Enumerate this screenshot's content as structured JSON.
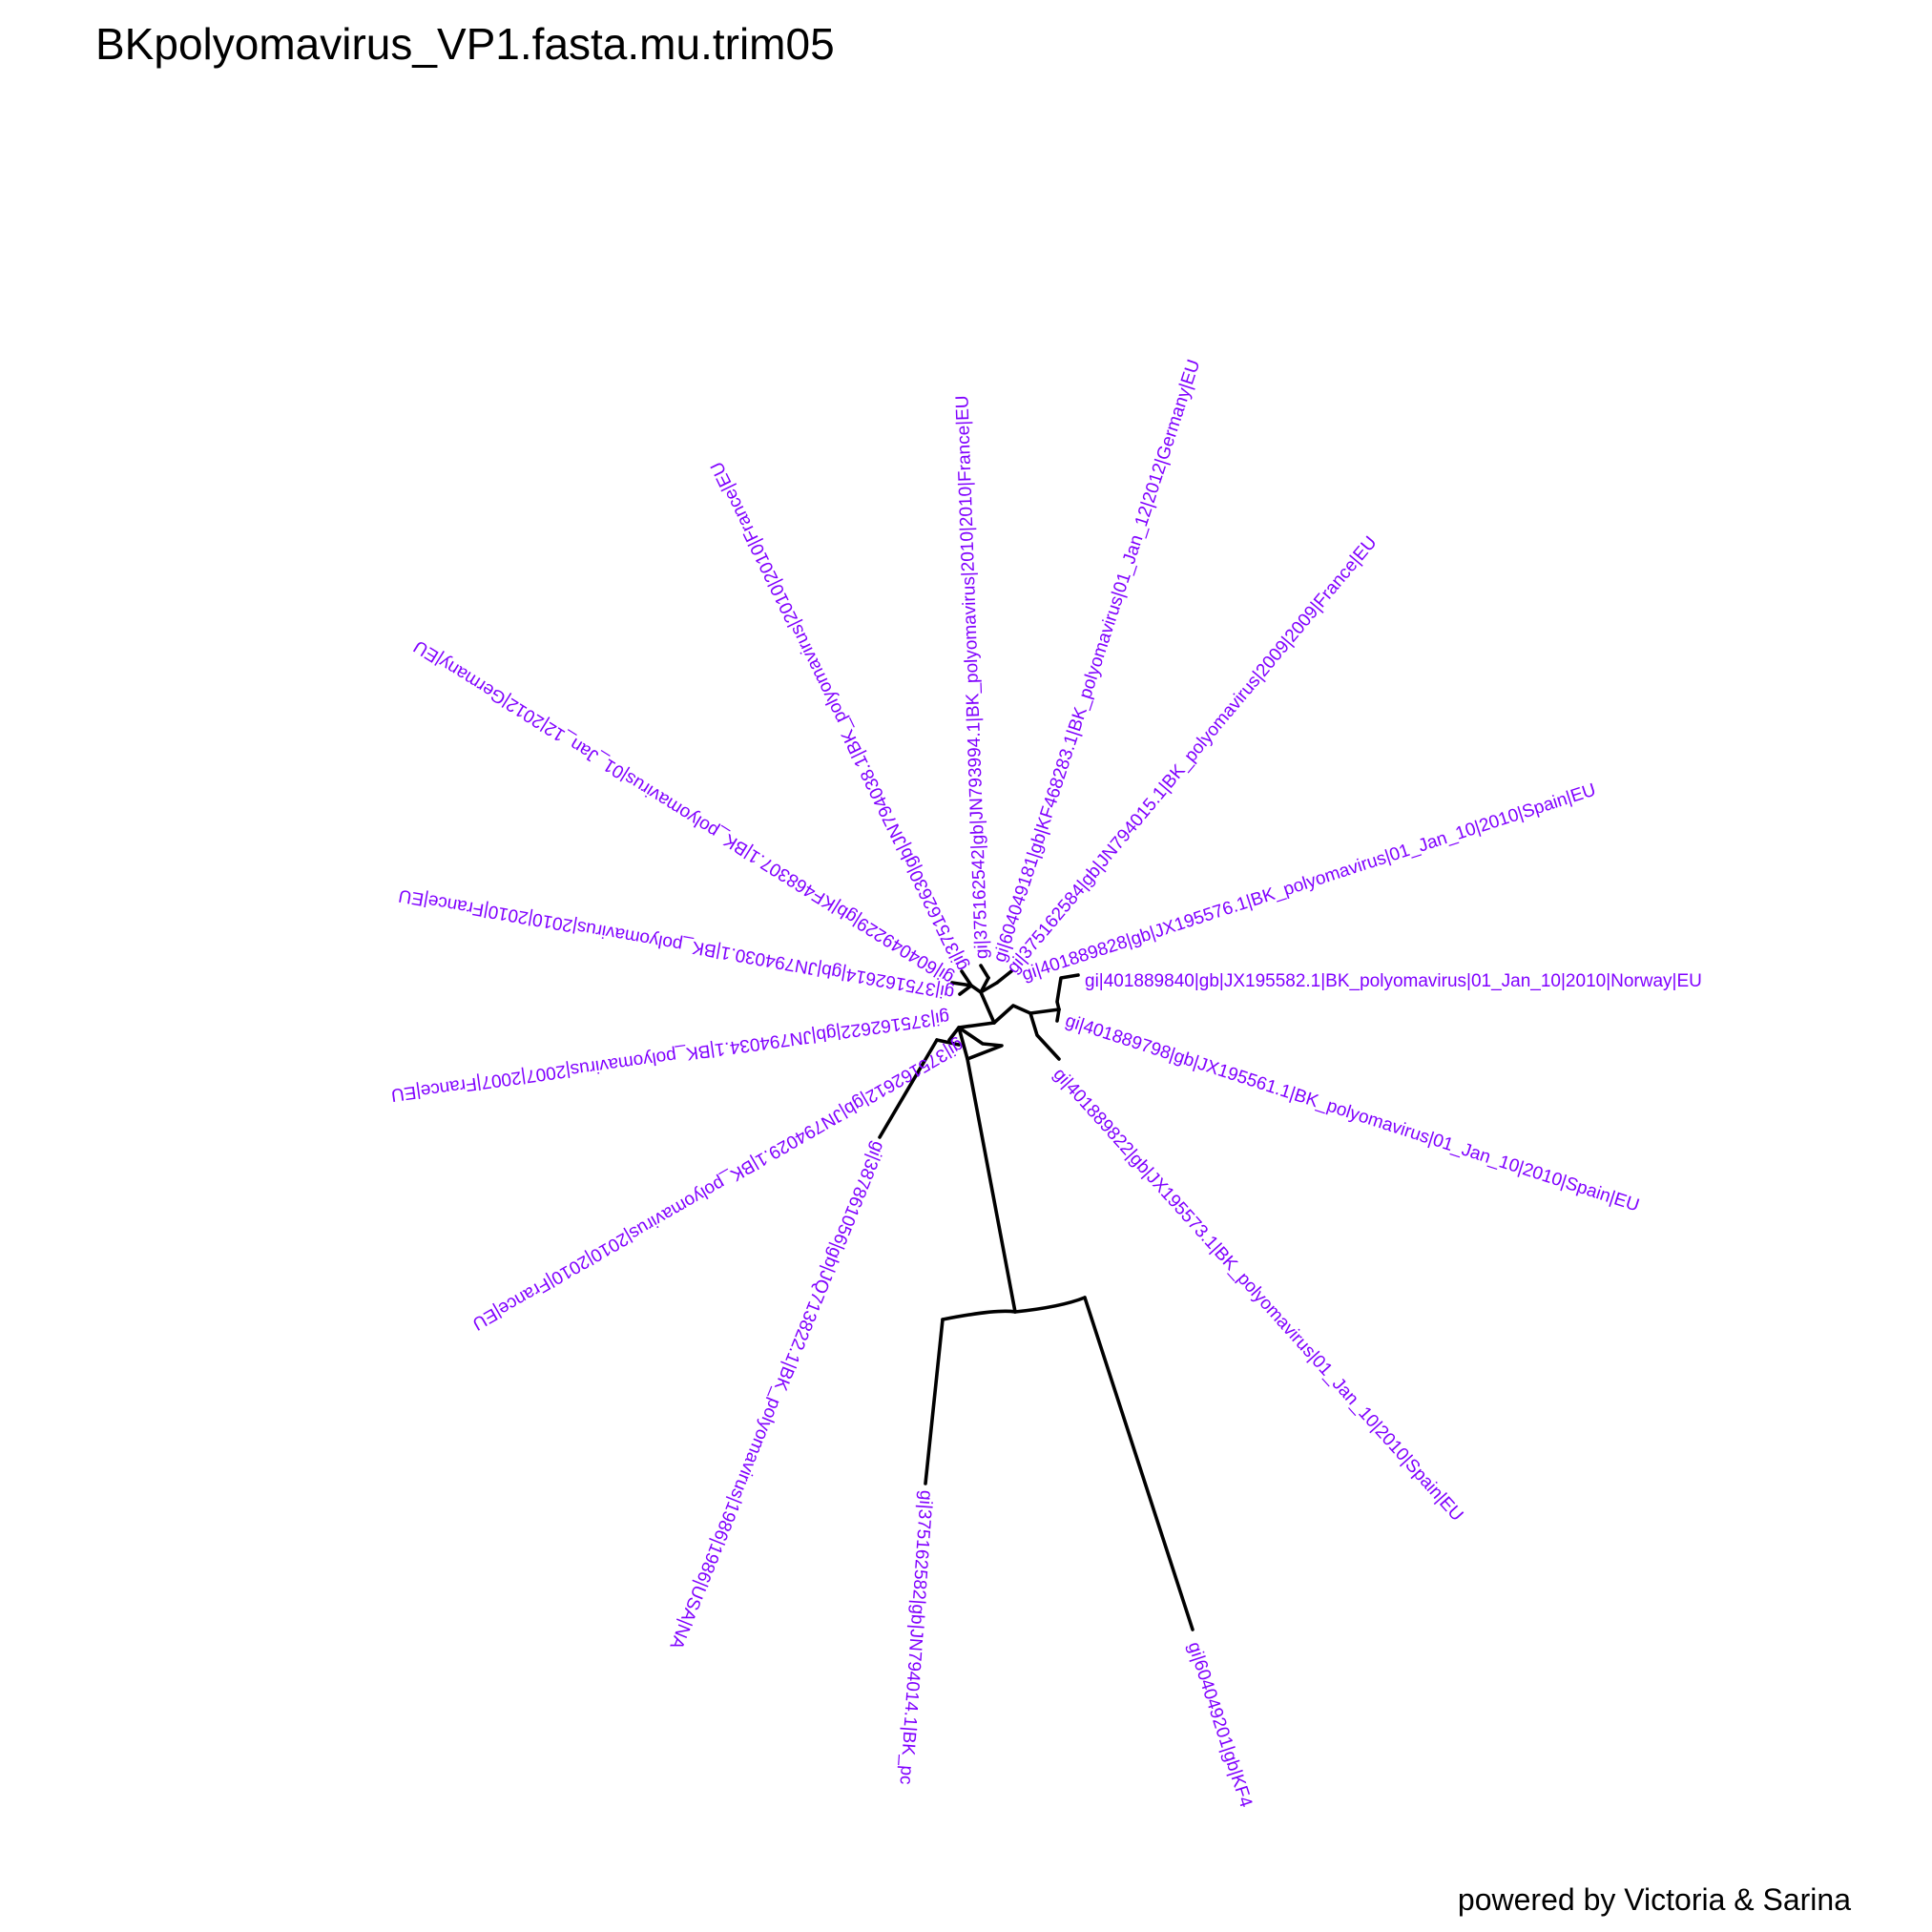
{
  "title": "BKpolyomavirus_VP1.fasta.mu.trim05",
  "credit": "powered by Victoria & Sarina",
  "colors": {
    "label": "#8000ff",
    "branch": "#000000",
    "background": "#ffffff"
  },
  "tree": {
    "layout": "circular",
    "leaves": [
      "gi|401889840|gb|JX195582.1|BK_polyomavirus|01_Jan_10|2010|Norway|EU",
      "gi|401889798|gb|JX195561.1|BK_polyomavirus|01_Jan_10|2010|Spain|EU",
      "gi|401889822|gb|JX195573.1|BK_polyomavirus|01_Jan_10|2010|Spain|EU",
      "gi|604049201|gb|KF4",
      "gi|375162582|gb|JN794014.1|BK_pc",
      "gi|387861056|gb|JQ713822.1|BK_polyomavirus|1986|1986|USA|NA",
      "gi|375162612|gb|JN794029.1|BK_polyomavirus|2010|2010|France|EU",
      "gi|375162622|gb|JN794034.1|BK_polyomavirus|2007|2007|France|EU",
      "gi|375162614|gb|JN794030.1|BK_polyomavirus|2010|2010|France|EU",
      "gi|604049229|gb|KF468307.1|BK_polyomavirus|01_Jan_12|2012|Germany|EU",
      "gi|375162630|gb|JN794038.1|BK_polyomavirus|2010|2010|France|EU",
      "gi|375162542|gb|JN793994.1|BK_polyomavirus|2010|2010|France|EU",
      "gi|604049181|gb|KF468283.1|BK_polyomavirus|01_Jan_12|2012|Germany|EU",
      "gi|375162584|gb|JN794015.1|BK_polyomavirus|2009|2009|France|EU",
      "gi|401889828|gb|JX195576.1|BK_polyomavirus|01_Jan_10|2010|Spain|EU"
    ]
  }
}
